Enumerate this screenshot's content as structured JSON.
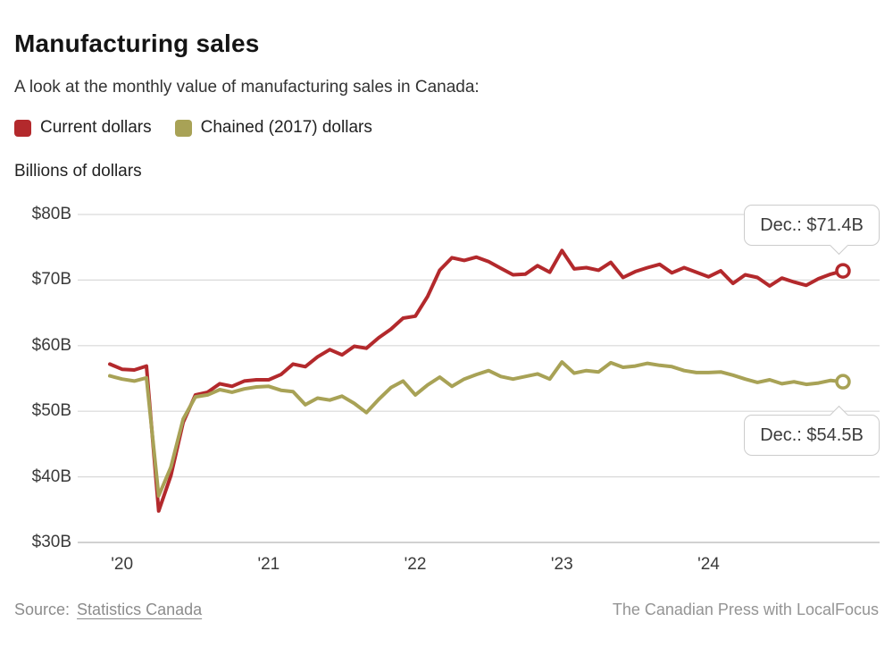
{
  "header": {
    "title": "Manufacturing sales",
    "subtitle": "A look at the monthly value of manufacturing sales in Canada:"
  },
  "legend": [
    {
      "label": "Current dollars",
      "color": "#b3292c"
    },
    {
      "label": "Chained (2017) dollars",
      "color": "#a8a256"
    }
  ],
  "y_axis_title": "Billions of dollars",
  "annotations": {
    "current_dollars_end": "Dec.: $71.4B",
    "chained_dollars_end": "Dec.: $54.5B"
  },
  "footer": {
    "source_label": "Source:",
    "source_link": "Statistics Canada",
    "credit": "The Canadian Press with LocalFocus"
  },
  "chart_data": {
    "type": "line",
    "title": "Manufacturing sales",
    "unit": "billions of Canadian dollars",
    "frequency": "monthly",
    "x_start": "2019-12",
    "x_end": "2024-12",
    "ylim": [
      30,
      80
    ],
    "grid": "horizontal",
    "legend_position": "top-left",
    "y_ticks": [
      {
        "label": "$80B",
        "value": 80
      },
      {
        "label": "$70B",
        "value": 70
      },
      {
        "label": "$60B",
        "value": 60
      },
      {
        "label": "$50B",
        "value": 50
      },
      {
        "label": "$40B",
        "value": 40
      },
      {
        "label": "$30B",
        "value": 30
      }
    ],
    "x_ticks": [
      {
        "label": "'20",
        "month_index": 1
      },
      {
        "label": "'21",
        "month_index": 13
      },
      {
        "label": "'22",
        "month_index": 25
      },
      {
        "label": "'23",
        "month_index": 37
      },
      {
        "label": "'24",
        "month_index": 49
      }
    ],
    "series": [
      {
        "name": "Current dollars",
        "color": "#b3292c",
        "end_label": "Dec.: $71.4B",
        "end_value": 71.4,
        "values": [
          57.2,
          56.4,
          56.3,
          56.9,
          34.8,
          40.2,
          48.3,
          52.5,
          52.9,
          54.2,
          53.8,
          54.6,
          54.8,
          54.8,
          55.6,
          57.2,
          56.8,
          58.3,
          59.4,
          58.6,
          59.9,
          59.6,
          61.2,
          62.5,
          64.2,
          64.5,
          67.5,
          71.5,
          73.4,
          73.0,
          73.5,
          72.8,
          71.8,
          70.8,
          70.9,
          72.2,
          71.2,
          74.5,
          71.7,
          71.9,
          71.5,
          72.7,
          70.4,
          71.3,
          71.9,
          72.4,
          71.1,
          71.9,
          71.2,
          70.5,
          71.4,
          69.5,
          70.8,
          70.4,
          69.1,
          70.3,
          69.7,
          69.2,
          70.2,
          70.9,
          71.4
        ]
      },
      {
        "name": "Chained (2017) dollars",
        "color": "#a8a256",
        "end_label": "Dec.: $54.5B",
        "end_value": 54.5,
        "values": [
          55.4,
          54.9,
          54.6,
          55.1,
          37.1,
          41.5,
          48.8,
          52.2,
          52.5,
          53.3,
          52.9,
          53.4,
          53.7,
          53.8,
          53.2,
          53.0,
          51.0,
          52.0,
          51.7,
          52.3,
          51.2,
          49.8,
          51.8,
          53.6,
          54.6,
          52.5,
          54.0,
          55.2,
          53.8,
          54.9,
          55.6,
          56.2,
          55.3,
          54.9,
          55.3,
          55.7,
          54.9,
          57.5,
          55.8,
          56.2,
          56.0,
          57.4,
          56.7,
          56.9,
          57.3,
          57.0,
          56.8,
          56.2,
          55.9,
          55.9,
          56.0,
          55.5,
          54.9,
          54.4,
          54.8,
          54.2,
          54.5,
          54.1,
          54.3,
          54.7,
          54.5
        ]
      }
    ]
  }
}
